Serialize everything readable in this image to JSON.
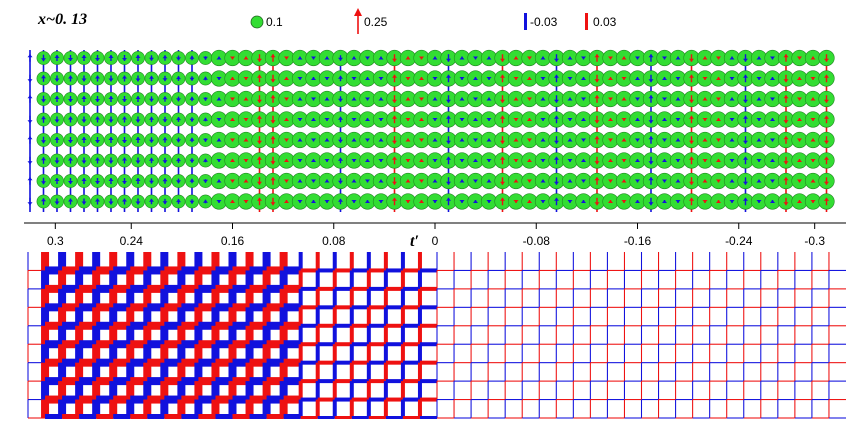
{
  "figure": {
    "label_x": "x~0. 13",
    "axis_label": "t′"
  },
  "legend": {
    "circle_label": "0.1",
    "arrow_label": "0.25",
    "bond_neg_label": "-0.03",
    "bond_pos_label": "0.03"
  },
  "colors": {
    "charge_fill": "#33dd33",
    "positive": "#ee1111",
    "negative": "#1111dd",
    "axis": "#000000"
  },
  "chart_data": [
    {
      "type": "scatter",
      "title": "",
      "description_units": "t′ sweep",
      "xlabel": "t′",
      "x_ticks": [
        "0.3",
        "0.24",
        "0.16",
        "0.08",
        "0",
        "-0.08",
        "-0.16",
        "-0.24",
        "-0.3"
      ],
      "x_tick_values": [
        0.3,
        0.24,
        0.16,
        0.08,
        0,
        -0.08,
        -0.16,
        -0.24,
        -0.3
      ],
      "xlim": [
        0.32,
        -0.32
      ],
      "columns": [
        {
          "t": 0.3,
          "circle": 0.0,
          "spin": 0.25,
          "sign": "neg"
        },
        {
          "t": 0.29,
          "circle": 0.06,
          "spin": 0.22,
          "sign": "neg"
        },
        {
          "t": 0.28,
          "circle": 0.06,
          "spin": 0.2,
          "sign": "neg"
        },
        {
          "t": 0.27,
          "circle": 0.06,
          "spin": 0.2,
          "sign": "neg"
        },
        {
          "t": 0.26,
          "circle": 0.06,
          "spin": 0.2,
          "sign": "neg"
        },
        {
          "t": 0.25,
          "circle": 0.06,
          "spin": 0.2,
          "sign": "neg"
        },
        {
          "t": 0.24,
          "circle": 0.06,
          "spin": 0.2,
          "sign": "neg"
        },
        {
          "t": 0.23,
          "circle": 0.06,
          "spin": 0.2,
          "sign": "neg"
        },
        {
          "t": 0.22,
          "circle": 0.06,
          "spin": 0.2,
          "sign": "neg"
        },
        {
          "t": 0.21,
          "circle": 0.06,
          "spin": 0.18,
          "sign": "neg"
        },
        {
          "t": 0.2,
          "circle": 0.06,
          "spin": 0.18,
          "sign": "neg"
        },
        {
          "t": 0.19,
          "circle": 0.06,
          "spin": 0.16,
          "sign": "neg"
        },
        {
          "t": 0.18,
          "circle": 0.06,
          "spin": 0.15,
          "sign": "neg"
        },
        {
          "t": 0.17,
          "circle": 0.06,
          "spin": 0.12,
          "sign": "neg"
        },
        {
          "t": 0.16,
          "circle": 0.08,
          "spin": 0.04,
          "sign": "neg"
        },
        {
          "t": 0.15,
          "circle": 0.08,
          "spin": 0.02,
          "sign": "pos"
        },
        {
          "t": 0.14,
          "circle": 0.08,
          "spin": 0.04,
          "sign": "pos"
        },
        {
          "t": 0.13,
          "circle": 0.08,
          "spin": 0.25,
          "sign": "pos"
        },
        {
          "t": 0.12,
          "circle": 0.08,
          "spin": 0.25,
          "sign": "pos"
        },
        {
          "t": 0.11,
          "circle": 0.08,
          "spin": 0.04,
          "sign": "pos"
        },
        {
          "t": 0.1,
          "circle": 0.08,
          "spin": 0.02,
          "sign": "neg"
        },
        {
          "t": 0.09,
          "circle": 0.08,
          "spin": 0.03,
          "sign": "neg"
        },
        {
          "t": 0.08,
          "circle": 0.08,
          "spin": 0.04,
          "sign": "neg"
        },
        {
          "t": 0.07,
          "circle": 0.08,
          "spin": 0.18,
          "sign": "neg"
        },
        {
          "t": 0.06,
          "circle": 0.08,
          "spin": 0.04,
          "sign": "neg"
        },
        {
          "t": 0.05,
          "circle": 0.08,
          "spin": 0.04,
          "sign": "neg"
        },
        {
          "t": 0.04,
          "circle": 0.08,
          "spin": 0.03,
          "sign": "neg"
        },
        {
          "t": 0.03,
          "circle": 0.08,
          "spin": 0.25,
          "sign": "pos"
        },
        {
          "t": 0.02,
          "circle": 0.08,
          "spin": 0.03,
          "sign": "pos"
        },
        {
          "t": 0.01,
          "circle": 0.08,
          "spin": 0.03,
          "sign": "pos"
        },
        {
          "t": 0.0,
          "circle": 0.08,
          "spin": 0.03,
          "sign": "neg"
        },
        {
          "t": -0.01,
          "circle": 0.08,
          "spin": 0.25,
          "sign": "neg"
        },
        {
          "t": -0.02,
          "circle": 0.08,
          "spin": 0.04,
          "sign": "neg"
        },
        {
          "t": -0.03,
          "circle": 0.08,
          "spin": 0.04,
          "sign": "neg"
        },
        {
          "t": -0.04,
          "circle": 0.08,
          "spin": 0.04,
          "sign": "neg"
        },
        {
          "t": -0.05,
          "circle": 0.08,
          "spin": 0.25,
          "sign": "pos"
        },
        {
          "t": -0.06,
          "circle": 0.08,
          "spin": 0.04,
          "sign": "pos"
        },
        {
          "t": -0.07,
          "circle": 0.08,
          "spin": 0.04,
          "sign": "pos"
        },
        {
          "t": -0.08,
          "circle": 0.08,
          "spin": 0.04,
          "sign": "neg"
        },
        {
          "t": -0.09,
          "circle": 0.08,
          "spin": 0.25,
          "sign": "neg"
        },
        {
          "t": -0.1,
          "circle": 0.08,
          "spin": 0.04,
          "sign": "neg"
        },
        {
          "t": -0.11,
          "circle": 0.08,
          "spin": 0.04,
          "sign": "neg"
        },
        {
          "t": -0.12,
          "circle": 0.08,
          "spin": 0.25,
          "sign": "pos"
        },
        {
          "t": -0.13,
          "circle": 0.08,
          "spin": 0.04,
          "sign": "pos"
        },
        {
          "t": -0.14,
          "circle": 0.08,
          "spin": 0.04,
          "sign": "pos"
        },
        {
          "t": -0.15,
          "circle": 0.08,
          "spin": 0.04,
          "sign": "neg"
        },
        {
          "t": -0.16,
          "circle": 0.08,
          "spin": 0.25,
          "sign": "neg"
        },
        {
          "t": -0.17,
          "circle": 0.08,
          "spin": 0.04,
          "sign": "neg"
        },
        {
          "t": -0.18,
          "circle": 0.08,
          "spin": 0.04,
          "sign": "neg"
        },
        {
          "t": -0.19,
          "circle": 0.08,
          "spin": 0.25,
          "sign": "pos"
        },
        {
          "t": -0.2,
          "circle": 0.08,
          "spin": 0.04,
          "sign": "pos"
        },
        {
          "t": -0.21,
          "circle": 0.08,
          "spin": 0.04,
          "sign": "pos"
        },
        {
          "t": -0.22,
          "circle": 0.08,
          "spin": 0.04,
          "sign": "neg"
        },
        {
          "t": -0.23,
          "circle": 0.08,
          "spin": 0.25,
          "sign": "neg"
        },
        {
          "t": -0.24,
          "circle": 0.08,
          "spin": 0.04,
          "sign": "neg"
        },
        {
          "t": -0.25,
          "circle": 0.08,
          "spin": 0.04,
          "sign": "neg"
        },
        {
          "t": -0.26,
          "circle": 0.08,
          "spin": 0.25,
          "sign": "pos"
        },
        {
          "t": -0.27,
          "circle": 0.08,
          "spin": 0.04,
          "sign": "pos"
        },
        {
          "t": -0.28,
          "circle": 0.08,
          "spin": 0.04,
          "sign": "pos"
        },
        {
          "t": -0.29,
          "circle": 0.08,
          "spin": 0.25,
          "sign": "pos"
        }
      ],
      "grid": false
    },
    {
      "type": "heatmap",
      "title": "",
      "xlabel": "t′",
      "bond_scale": [
        -0.03,
        0.03
      ],
      "regions": [
        {
          "t_from": 0.3,
          "t_to": 0.1,
          "bond_magnitude": 0.03
        },
        {
          "t_from": 0.1,
          "t_to": 0.0,
          "bond_magnitude": 0.015
        },
        {
          "t_from": 0.0,
          "t_to": -0.3,
          "bond_magnitude": 0.004
        }
      ],
      "grid": false
    }
  ]
}
